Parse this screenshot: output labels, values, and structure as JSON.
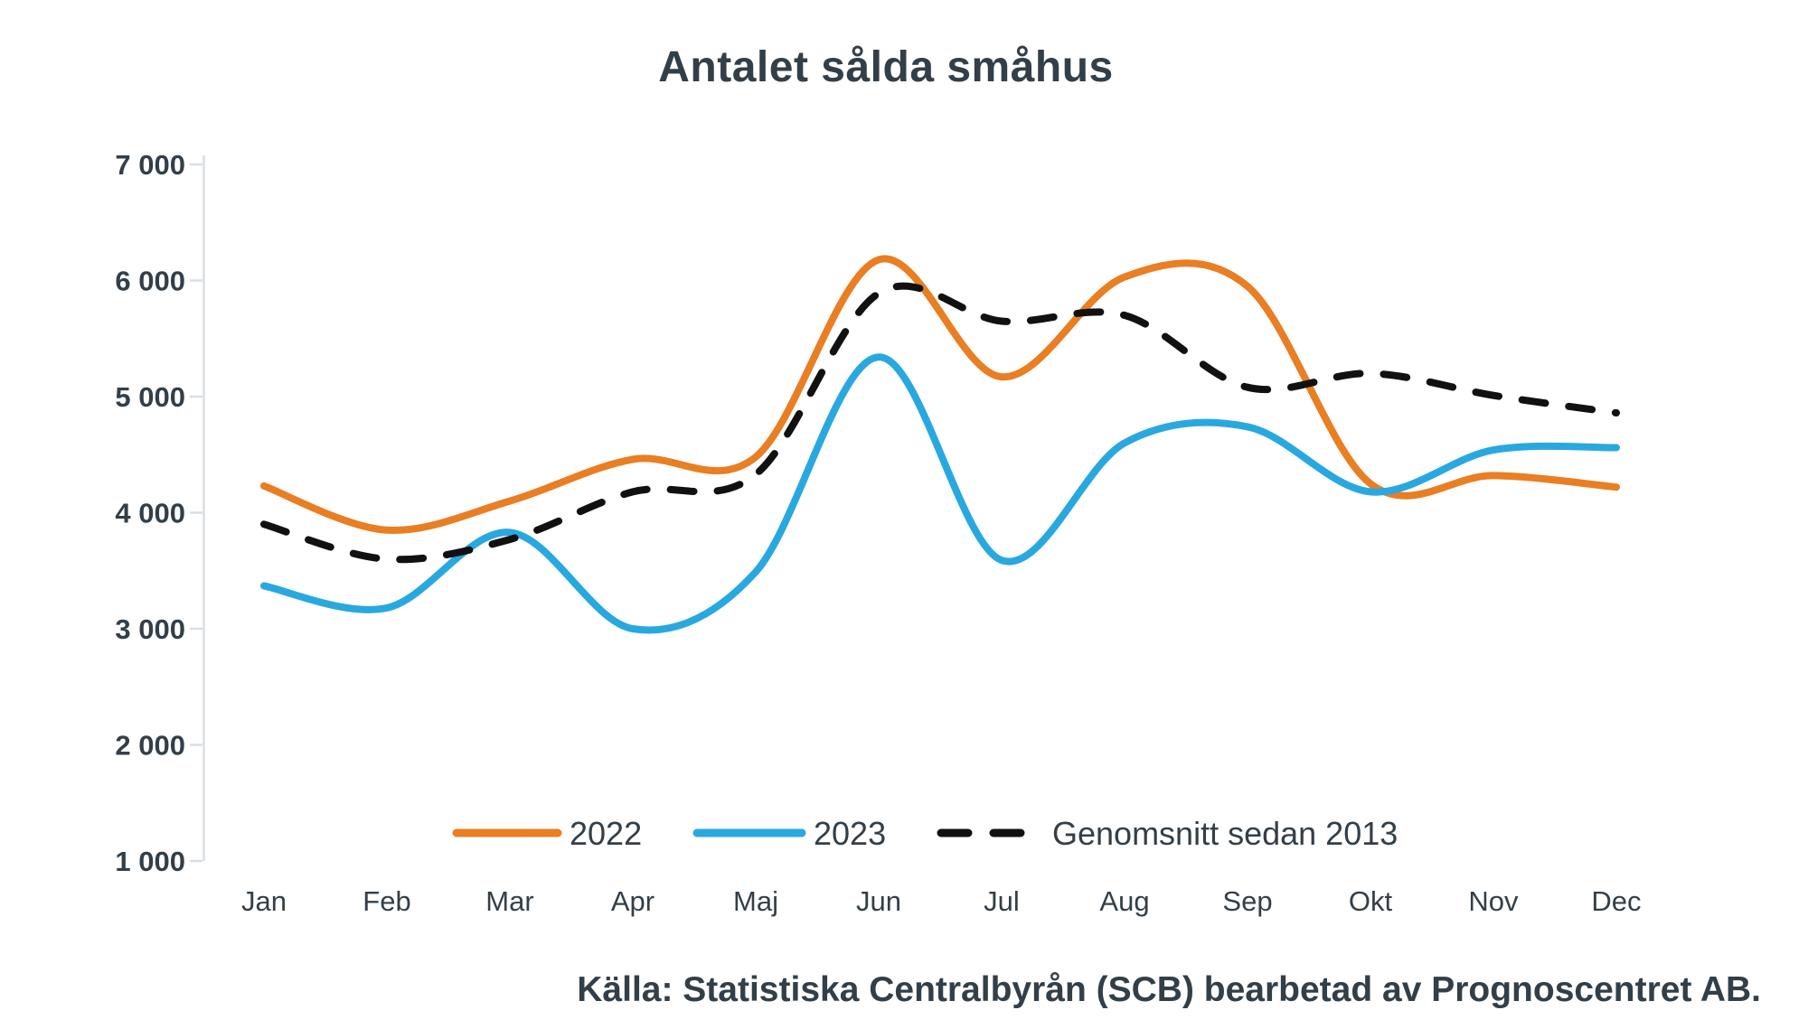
{
  "title": "Antalet sålda småhus",
  "source": "Källa: Statistiska Centralbyrån (SCB) bearbetad av Prognoscentret AB.",
  "colors": {
    "text": "#333F48",
    "axis": "#D9DEE4",
    "background": "#FFFFFF",
    "series_2022": "#E97E23",
    "series_2023": "#29A8E0",
    "series_avg": "#111111"
  },
  "legend": {
    "position": "bottom",
    "items": [
      {
        "label": "2022",
        "style": "solid",
        "color": "#E97E23"
      },
      {
        "label": "2023",
        "style": "solid",
        "color": "#29A8E0"
      },
      {
        "label": "Genomsnitt sedan 2013",
        "style": "dashed",
        "color": "#111111"
      }
    ]
  },
  "chart_data": {
    "type": "line",
    "title": "Antalet sålda småhus",
    "categories": [
      "Jan",
      "Feb",
      "Mar",
      "Apr",
      "Maj",
      "Jun",
      "Jul",
      "Aug",
      "Sep",
      "Okt",
      "Nov",
      "Dec"
    ],
    "y_ticks": [
      7000,
      6000,
      5000,
      4000,
      3000,
      2000,
      1000
    ],
    "y_tick_labels": [
      "7 000",
      "6 000",
      "5 000",
      "4 000",
      "3 000",
      "2 000",
      "1 000"
    ],
    "ylim": [
      1000,
      7000
    ],
    "grid": false,
    "line_smoothing": "catmull-rom",
    "legend_position": "bottom",
    "series": [
      {
        "name": "2022",
        "style": "solid",
        "color": "#E97E23",
        "values": [
          4230,
          3850,
          4100,
          4460,
          4480,
          6180,
          5170,
          6030,
          5950,
          4250,
          4320,
          4220
        ]
      },
      {
        "name": "2023",
        "style": "solid",
        "color": "#29A8E0",
        "values": [
          3370,
          3180,
          3830,
          3000,
          3490,
          5340,
          3590,
          4600,
          4740,
          4180,
          4540,
          4560
        ]
      },
      {
        "name": "Genomsnitt sedan 2013",
        "style": "dashed",
        "color": "#111111",
        "values": [
          3900,
          3600,
          3770,
          4180,
          4330,
          5890,
          5650,
          5700,
          5080,
          5200,
          5010,
          4860
        ]
      }
    ]
  }
}
